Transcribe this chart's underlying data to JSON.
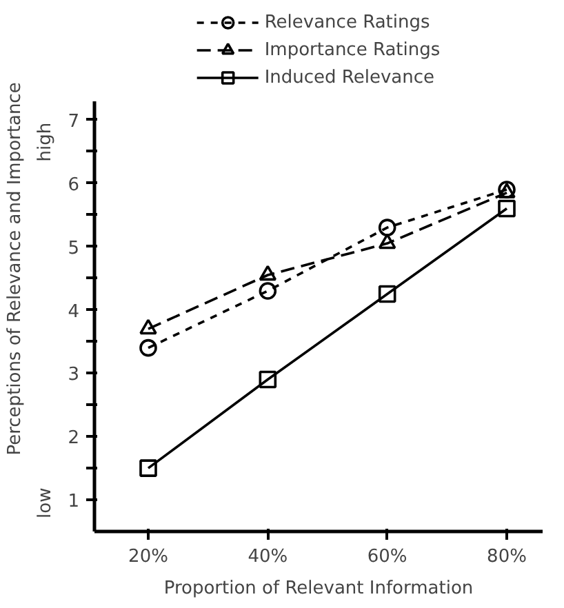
{
  "chart_data": {
    "type": "line",
    "xlabel": "Proportion of Relevant Information",
    "ylabel": "Perceptions of Relevance and Importance",
    "x": [
      20,
      40,
      60,
      80
    ],
    "series": [
      {
        "name": "Relevance Ratings",
        "color": "#000000",
        "values": [
          3.4,
          4.3,
          5.3,
          5.9
        ],
        "marker": "circle",
        "line_style": "dotted"
      },
      {
        "name": "Importance Ratings",
        "color": "#000000",
        "values": [
          3.7,
          4.55,
          5.05,
          5.85
        ],
        "marker": "triangle",
        "line_style": "dashed"
      },
      {
        "name": "Induced Relevance",
        "color": "#000000",
        "values": [
          1.5,
          2.9,
          4.25,
          5.6
        ],
        "marker": "square",
        "line_style": "solid"
      }
    ],
    "xlim": [
      11,
      86
    ],
    "ylim": [
      0.5,
      7.3
    ],
    "xticks": [
      {
        "value": 20,
        "label": "20%"
      },
      {
        "value": 40,
        "label": "40%"
      },
      {
        "value": 60,
        "label": "60%"
      },
      {
        "value": 80,
        "label": "80%"
      }
    ],
    "yticks": [
      1,
      {
        "value": 1.5,
        "label": null
      },
      2,
      {
        "value": 2.5,
        "label": null
      },
      3,
      {
        "value": 3.5,
        "label": null
      },
      4,
      {
        "value": 4.5,
        "label": null
      },
      5,
      {
        "value": 5.5,
        "label": null
      },
      6,
      {
        "value": 6.5,
        "label": null
      },
      7
    ],
    "annotations": [
      "high",
      "low"
    ],
    "legend": "top",
    "grid": false
  }
}
